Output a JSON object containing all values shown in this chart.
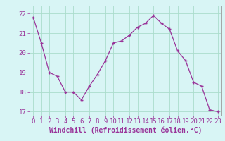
{
  "x": [
    0,
    1,
    2,
    3,
    4,
    5,
    6,
    7,
    8,
    9,
    10,
    11,
    12,
    13,
    14,
    15,
    16,
    17,
    18,
    19,
    20,
    21,
    22,
    23
  ],
  "y": [
    21.8,
    20.5,
    19.0,
    18.8,
    18.0,
    18.0,
    17.6,
    18.3,
    18.9,
    19.6,
    20.5,
    20.6,
    20.9,
    21.3,
    21.5,
    21.9,
    21.5,
    21.2,
    20.1,
    19.6,
    18.5,
    18.3,
    17.1,
    17.0
  ],
  "line_color": "#993399",
  "marker": "+",
  "marker_size": 3,
  "bg_color": "#d8f5f5",
  "grid_color": "#aaddcc",
  "xlabel": "Windchill (Refroidissement éolien,°C)",
  "xlabel_color": "#993399",
  "xlabel_fontsize": 7,
  "tick_color": "#993399",
  "tick_fontsize": 6.5,
  "ylim": [
    16.8,
    22.4
  ],
  "yticks": [
    17,
    18,
    19,
    20,
    21,
    22
  ],
  "xlim": [
    -0.5,
    23.5
  ],
  "xticks": [
    0,
    1,
    2,
    3,
    4,
    5,
    6,
    7,
    8,
    9,
    10,
    11,
    12,
    13,
    14,
    15,
    16,
    17,
    18,
    19,
    20,
    21,
    22,
    23
  ],
  "spine_color": "#999999",
  "line_width": 0.9
}
